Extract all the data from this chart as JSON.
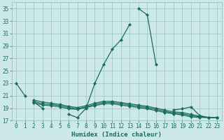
{
  "xlabel": "Humidex (Indice chaleur)",
  "xlim": [
    -0.5,
    23.5
  ],
  "ylim": [
    17,
    36
  ],
  "yticks": [
    17,
    19,
    21,
    23,
    25,
    27,
    29,
    31,
    33,
    35
  ],
  "xticks": [
    0,
    1,
    2,
    3,
    4,
    5,
    6,
    7,
    8,
    9,
    10,
    11,
    12,
    13,
    14,
    15,
    16,
    17,
    18,
    19,
    20,
    21,
    22,
    23
  ],
  "bg_color": "#cce8e8",
  "grid_color": "#88bbbb",
  "line_color": "#1a6b60",
  "x": [
    0,
    1,
    2,
    3,
    4,
    5,
    6,
    7,
    8,
    9,
    10,
    11,
    12,
    13,
    14,
    15,
    16,
    17,
    18,
    19,
    20,
    21,
    22,
    23
  ],
  "y_curve1": [
    23,
    21,
    null,
    null,
    null,
    null,
    null,
    null,
    null,
    null,
    null,
    null,
    null,
    null,
    35,
    34,
    26,
    null,
    null,
    null,
    null,
    null,
    null,
    null
  ],
  "y_curve2": [
    null,
    null,
    20,
    19,
    null,
    null,
    18,
    17.5,
    19,
    23,
    26,
    28.5,
    30,
    32.5,
    null,
    null,
    null,
    null,
    null,
    null,
    null,
    null,
    null,
    null
  ],
  "y_flat1": [
    null,
    null,
    20.3,
    20.0,
    19.8,
    19.6,
    19.3,
    19.1,
    19.4,
    19.8,
    20.1,
    20.1,
    19.9,
    19.7,
    19.5,
    19.3,
    19.0,
    18.7,
    18.4,
    18.3,
    18.0,
    17.7,
    17.5,
    17.5
  ],
  "y_flat2": [
    null,
    null,
    20.1,
    19.7,
    19.6,
    19.4,
    19.1,
    18.9,
    19.2,
    19.6,
    19.9,
    19.9,
    19.7,
    19.5,
    19.3,
    19.1,
    18.8,
    18.5,
    18.2,
    18.1,
    17.8,
    17.6,
    17.5,
    17.5
  ],
  "y_flat3": [
    null,
    null,
    19.9,
    19.5,
    19.4,
    19.2,
    18.9,
    18.8,
    19.1,
    19.4,
    19.7,
    19.7,
    19.5,
    19.3,
    19.1,
    18.9,
    18.6,
    18.3,
    18.1,
    17.9,
    17.6,
    17.5,
    17.5,
    17.5
  ],
  "y_flat4": [
    null,
    null,
    null,
    null,
    null,
    null,
    null,
    null,
    null,
    null,
    null,
    null,
    null,
    null,
    null,
    null,
    null,
    null,
    18.7,
    18.9,
    19.2,
    17.8,
    17.5,
    17.5
  ]
}
